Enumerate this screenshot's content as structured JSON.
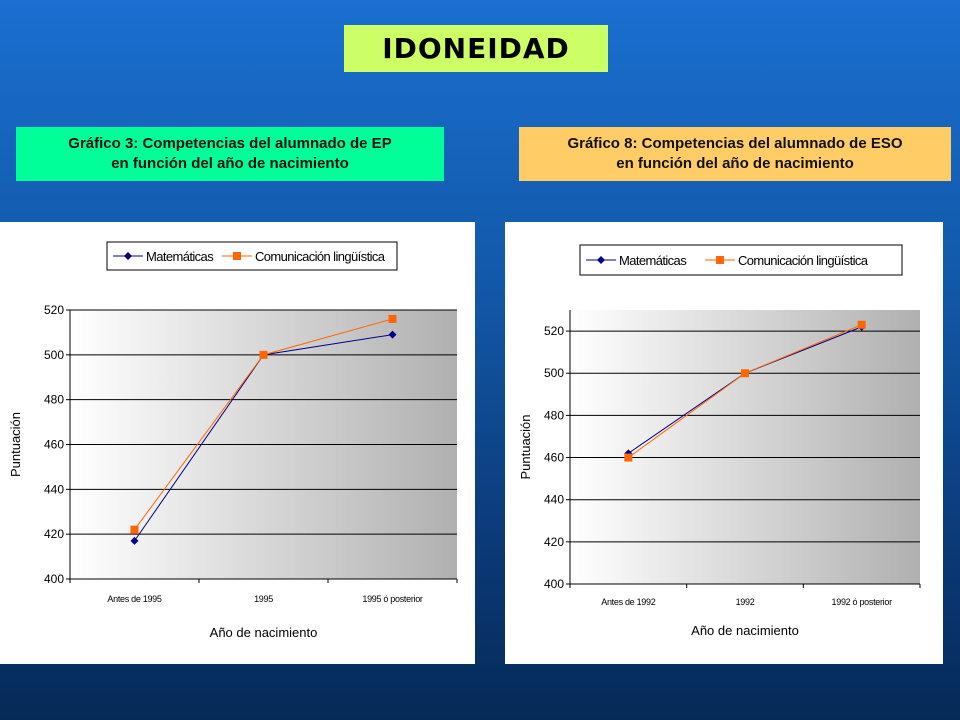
{
  "page_title": "IDONEIDAD",
  "charts_meta": [
    {
      "caption_line1": "Gráfico 3: Competencias del alumnado de EP",
      "caption_line2": "en función del año de nacimiento"
    },
    {
      "caption_line1": "Gráfico 8: Competencias del alumnado de ESO",
      "caption_line2": "en función del año de nacimiento"
    }
  ],
  "colors": {
    "matematicas": "#00008b",
    "comunicacion": "#ff6600",
    "title_bg": "#ccff66",
    "caption_left_bg": "#00ff99",
    "caption_right_bg": "#ffcc66"
  },
  "chart_data": [
    {
      "type": "line",
      "categories": [
        "Antes de 1995",
        "1995",
        "1995 ó posterior"
      ],
      "series": [
        {
          "name": "Matemáticas",
          "values": [
            417,
            500,
            509
          ],
          "marker": "diamond"
        },
        {
          "name": "Comunicación lingüística",
          "values": [
            422,
            500,
            516
          ],
          "marker": "square"
        }
      ],
      "xlabel": "Año de nacimiento",
      "ylabel": "Puntuación",
      "ylim": [
        400,
        520
      ],
      "yticks": [
        400,
        420,
        440,
        460,
        480,
        500,
        520
      ],
      "grid": true,
      "legend": "top"
    },
    {
      "type": "line",
      "categories": [
        "Antes de 1992",
        "1992",
        "1992 ó posterior"
      ],
      "series": [
        {
          "name": "Matemáticas",
          "values": [
            462,
            500,
            522
          ],
          "marker": "diamond"
        },
        {
          "name": "Comunicación lingüística",
          "values": [
            460,
            500,
            523
          ],
          "marker": "square"
        }
      ],
      "xlabel": "Año de nacimiento",
      "ylabel": "Puntuación",
      "ylim": [
        400,
        530
      ],
      "yticks": [
        400,
        420,
        440,
        460,
        480,
        500,
        520
      ],
      "grid": true,
      "legend": "top"
    }
  ]
}
